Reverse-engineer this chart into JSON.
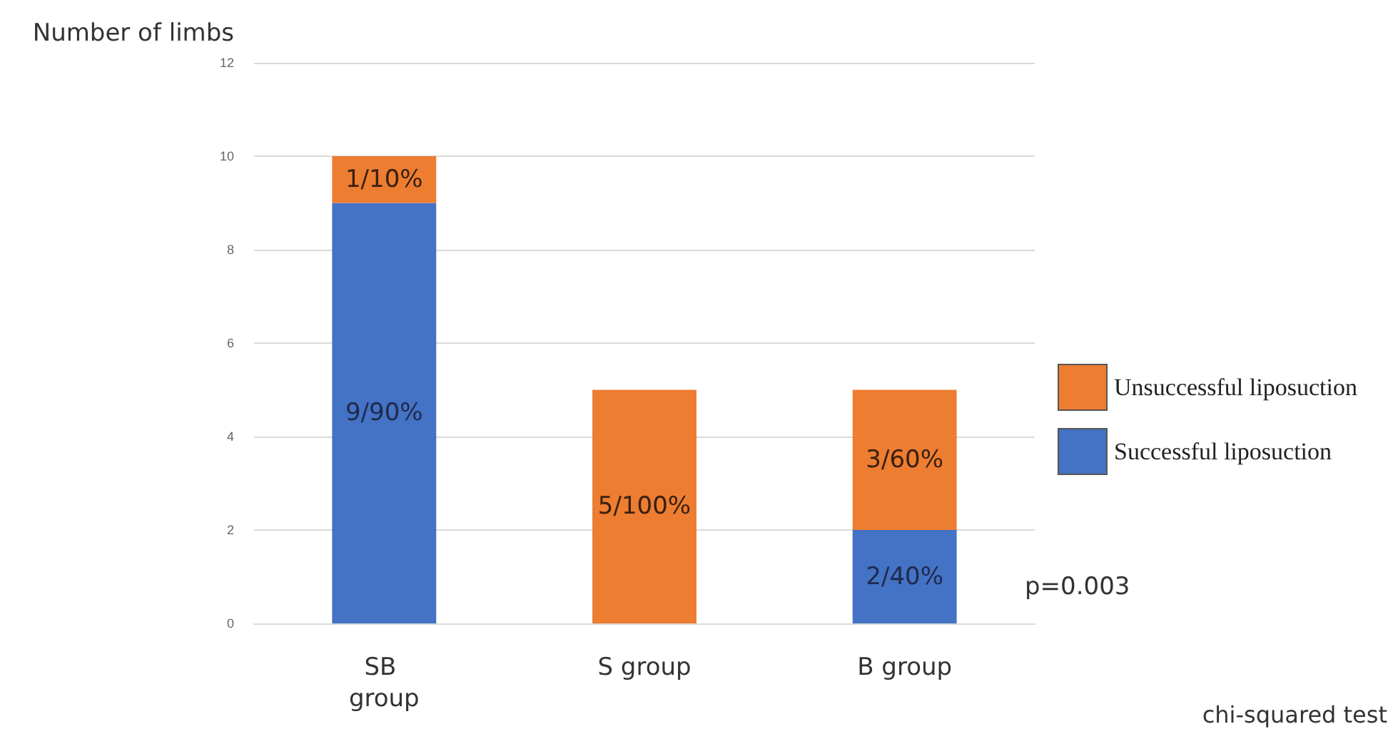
{
  "chart_data": {
    "type": "bar",
    "ylabel": "Number of limbs",
    "categories": [
      "SB group",
      "S group",
      "B group"
    ],
    "series": [
      {
        "name": "Successful liposuction",
        "color": "#4472c4",
        "values": [
          9,
          0,
          2
        ],
        "value_labels": [
          "9/90%",
          null,
          "2/40%"
        ]
      },
      {
        "name": "Unsuccessful liposuction",
        "color": "#ed7d31",
        "values": [
          1,
          5,
          3
        ],
        "value_labels": [
          "1/10%",
          "5/100%",
          "3/60%"
        ]
      }
    ],
    "stacked": true,
    "ylim": [
      0,
      12
    ],
    "yticks": [
      0,
      2,
      4,
      6,
      8,
      10,
      12
    ],
    "grid": "y",
    "legend": "right",
    "annotations": [
      "p=0.003",
      "chi-squared test"
    ]
  }
}
